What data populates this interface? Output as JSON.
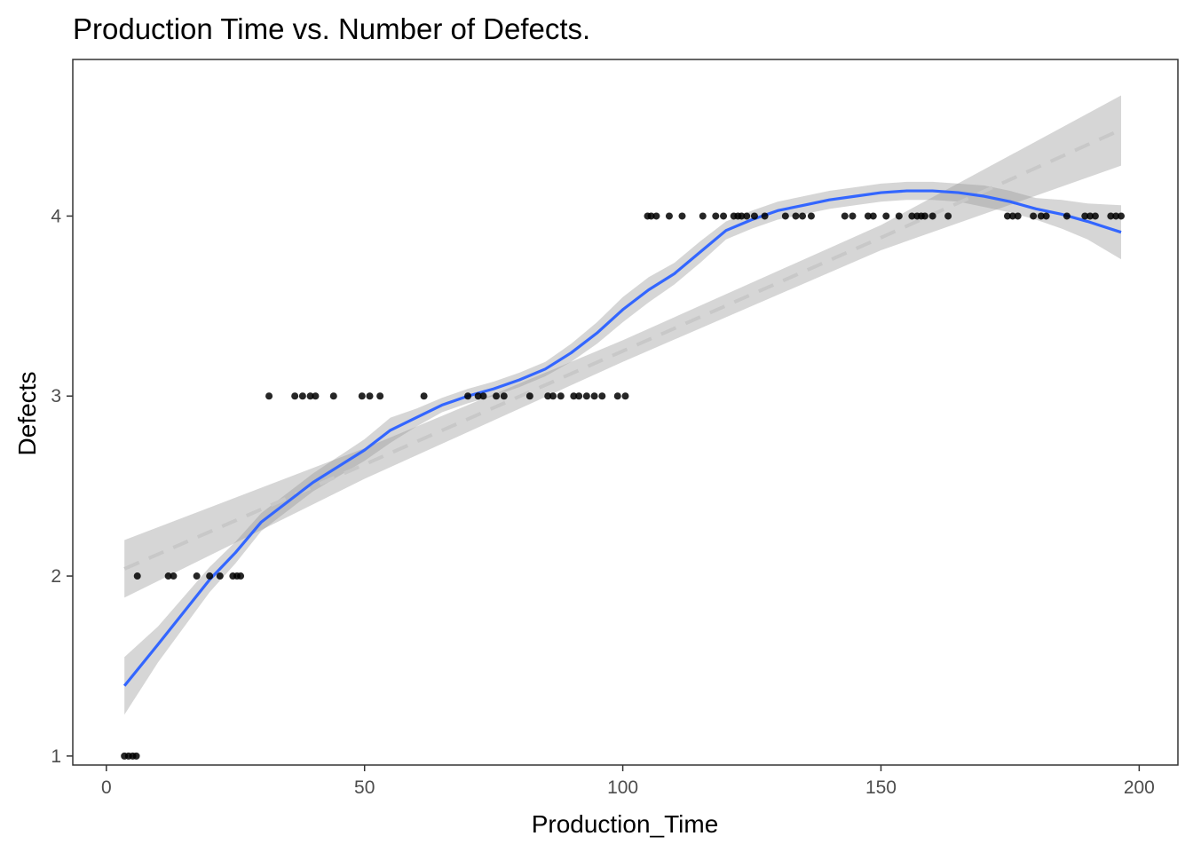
{
  "chart_data": {
    "type": "scatter",
    "title": "Production Time vs. Number of Defects.",
    "xlabel": "Production_Time",
    "ylabel": "Defects",
    "xlim": [
      -6.5,
      207.5
    ],
    "ylim": [
      0.95,
      4.87
    ],
    "x_ticks": [
      0,
      50,
      100,
      150,
      200
    ],
    "y_ticks": [
      1,
      2,
      3,
      4
    ],
    "grid": false,
    "legend": "none",
    "colors": {
      "points": "#000000",
      "loess_line": "#3366ff",
      "linear_line": "#c8c8c8",
      "ribbon": "#999999",
      "panel_border": "#333333"
    },
    "points": [
      [
        3.5,
        1
      ],
      [
        4.3,
        1
      ],
      [
        5.1,
        1
      ],
      [
        5.8,
        1
      ],
      [
        6.0,
        2
      ],
      [
        12.0,
        2
      ],
      [
        13.0,
        2
      ],
      [
        17.5,
        2
      ],
      [
        20.0,
        2
      ],
      [
        22.0,
        2
      ],
      [
        24.5,
        2
      ],
      [
        25.3,
        2
      ],
      [
        26.0,
        2
      ],
      [
        31.5,
        3
      ],
      [
        36.5,
        3
      ],
      [
        38.0,
        3
      ],
      [
        39.5,
        3
      ],
      [
        40.5,
        3
      ],
      [
        44.0,
        3
      ],
      [
        49.5,
        3
      ],
      [
        51.0,
        3
      ],
      [
        53.0,
        3
      ],
      [
        61.5,
        3
      ],
      [
        70.0,
        3
      ],
      [
        72.0,
        3
      ],
      [
        73.0,
        3
      ],
      [
        75.5,
        3
      ],
      [
        77.0,
        3
      ],
      [
        82.0,
        3
      ],
      [
        85.5,
        3
      ],
      [
        86.5,
        3
      ],
      [
        88.0,
        3
      ],
      [
        90.5,
        3
      ],
      [
        91.5,
        3
      ],
      [
        93.0,
        3
      ],
      [
        94.5,
        3
      ],
      [
        96.0,
        3
      ],
      [
        99.0,
        3
      ],
      [
        100.5,
        3
      ],
      [
        104.8,
        4
      ],
      [
        105.5,
        4
      ],
      [
        106.5,
        4
      ],
      [
        109.0,
        4
      ],
      [
        111.5,
        4
      ],
      [
        115.5,
        4
      ],
      [
        118.0,
        4
      ],
      [
        119.5,
        4
      ],
      [
        121.5,
        4
      ],
      [
        122.3,
        4
      ],
      [
        123.0,
        4
      ],
      [
        124.0,
        4
      ],
      [
        125.5,
        4
      ],
      [
        127.5,
        4
      ],
      [
        131.5,
        4
      ],
      [
        133.5,
        4
      ],
      [
        134.8,
        4
      ],
      [
        136.5,
        4
      ],
      [
        143.0,
        4
      ],
      [
        144.5,
        4
      ],
      [
        147.5,
        4
      ],
      [
        148.5,
        4
      ],
      [
        151.0,
        4
      ],
      [
        153.5,
        4
      ],
      [
        156.0,
        4
      ],
      [
        157.0,
        4
      ],
      [
        157.8,
        4
      ],
      [
        158.5,
        4
      ],
      [
        160.0,
        4
      ],
      [
        163.0,
        4
      ],
      [
        174.5,
        4
      ],
      [
        175.5,
        4
      ],
      [
        176.5,
        4
      ],
      [
        179.5,
        4
      ],
      [
        181.0,
        4
      ],
      [
        182.0,
        4
      ],
      [
        186.0,
        4
      ],
      [
        189.5,
        4
      ],
      [
        190.5,
        4
      ],
      [
        191.5,
        4
      ],
      [
        194.5,
        4
      ],
      [
        195.5,
        4
      ],
      [
        196.5,
        4
      ]
    ],
    "series": [
      {
        "type": "loess",
        "x": [
          3.5,
          10,
          20,
          25,
          30,
          40,
          50,
          55,
          60,
          65,
          70,
          75,
          80,
          85,
          90,
          95,
          100,
          105,
          110,
          115,
          120,
          125,
          130,
          135,
          140,
          145,
          150,
          155,
          160,
          165,
          170,
          175,
          180,
          185,
          190,
          196.5
        ],
        "y": [
          1.39,
          1.62,
          1.98,
          2.13,
          2.3,
          2.52,
          2.7,
          2.81,
          2.88,
          2.95,
          3.0,
          3.04,
          3.09,
          3.15,
          3.24,
          3.35,
          3.48,
          3.59,
          3.68,
          3.8,
          3.92,
          3.98,
          4.03,
          4.06,
          4.09,
          4.11,
          4.13,
          4.14,
          4.14,
          4.13,
          4.11,
          4.08,
          4.04,
          4.01,
          3.97,
          3.91
        ],
        "ci_low": [
          1.23,
          1.52,
          1.91,
          2.07,
          2.25,
          2.47,
          2.64,
          2.74,
          2.83,
          2.91,
          2.96,
          3.0,
          3.05,
          3.11,
          3.19,
          3.29,
          3.41,
          3.52,
          3.62,
          3.74,
          3.87,
          3.93,
          3.98,
          4.01,
          4.04,
          4.06,
          4.08,
          4.09,
          4.09,
          4.08,
          4.05,
          4.02,
          3.98,
          3.93,
          3.87,
          3.76
        ],
        "ci_high": [
          1.55,
          1.72,
          2.05,
          2.19,
          2.35,
          2.57,
          2.76,
          2.88,
          2.93,
          2.99,
          3.04,
          3.08,
          3.13,
          3.19,
          3.29,
          3.41,
          3.55,
          3.66,
          3.74,
          3.86,
          3.97,
          4.03,
          4.08,
          4.11,
          4.14,
          4.16,
          4.18,
          4.19,
          4.19,
          4.18,
          4.17,
          4.14,
          4.1,
          4.09,
          4.07,
          4.06
        ]
      },
      {
        "type": "linear",
        "x": [
          3.5,
          50,
          100,
          150,
          196.5
        ],
        "y": [
          2.04,
          2.62,
          3.25,
          3.88,
          4.48
        ],
        "ci_low": [
          1.88,
          2.54,
          3.19,
          3.81,
          4.28
        ],
        "ci_high": [
          2.2,
          2.71,
          3.31,
          3.95,
          4.67
        ]
      }
    ]
  }
}
